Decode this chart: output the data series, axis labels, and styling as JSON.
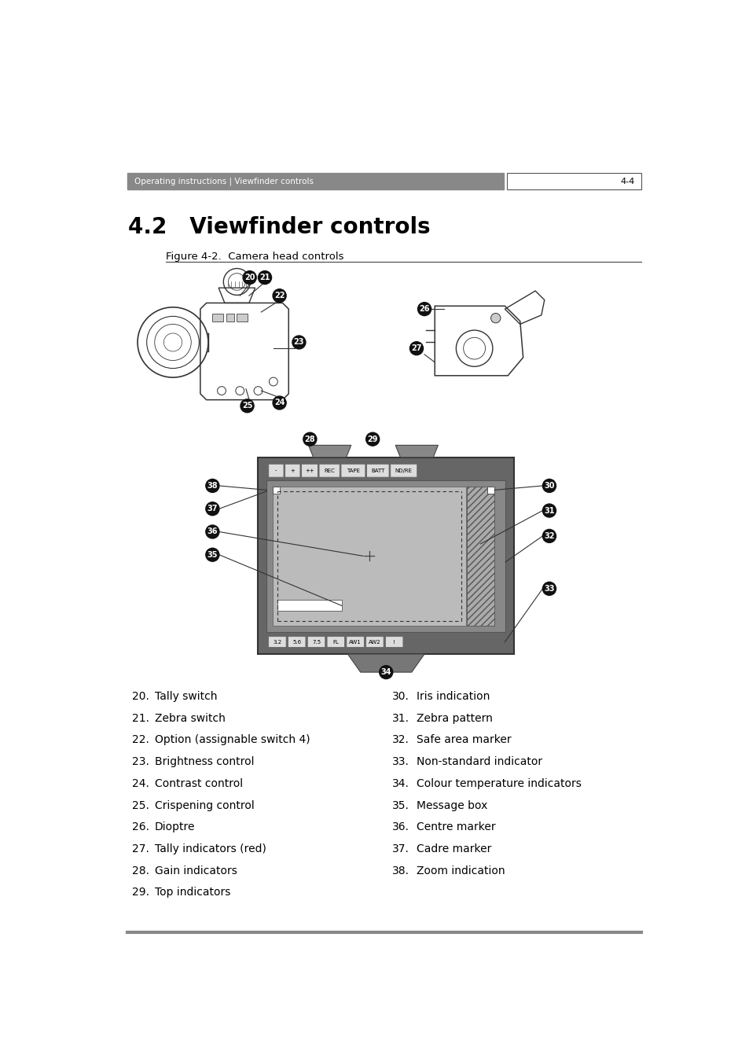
{
  "page_bg": "#ffffff",
  "header_bg": "#888888",
  "header_text": "Operating instructions | Viewfinder controls",
  "header_page": "4-4",
  "header_text_color": "#ffffff",
  "header_page_color": "#000000",
  "title": "4.2   Viewfinder controls",
  "figure_caption": "Figure 4-2.  Camera head controls",
  "footer_line_color": "#888888",
  "list_left": [
    [
      "20.",
      "Tally switch"
    ],
    [
      "21.",
      "Zebra switch"
    ],
    [
      "22.",
      "Option (assignable switch 4)"
    ],
    [
      "23.",
      "Brightness control"
    ],
    [
      "24.",
      "Contrast control"
    ],
    [
      "25.",
      "Crispening control"
    ],
    [
      "26.",
      "Dioptre"
    ],
    [
      "27.",
      "Tally indicators (red)"
    ],
    [
      "28.",
      "Gain indicators"
    ],
    [
      "29.",
      "Top indicators"
    ]
  ],
  "list_right": [
    [
      "30.",
      "Iris indication"
    ],
    [
      "31.",
      "Zebra pattern"
    ],
    [
      "32.",
      "Safe area marker"
    ],
    [
      "33.",
      "Non-standard indicator"
    ],
    [
      "34.",
      "Colour temperature indicators"
    ],
    [
      "35.",
      "Message box"
    ],
    [
      "36.",
      "Centre marker"
    ],
    [
      "37.",
      "Cadre marker"
    ],
    [
      "38.",
      "Zoom indication"
    ]
  ]
}
